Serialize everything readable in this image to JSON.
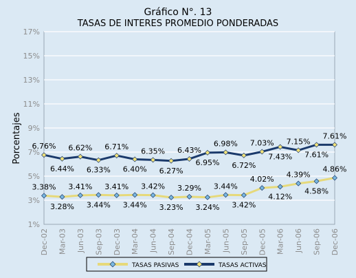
{
  "chart_data": {
    "type": "line",
    "title": "Gráfico N°. 13",
    "subtitle": "TASAS DE INTERES PROMEDIO PONDERADAS",
    "ylabel": "Porcentajes",
    "xlabel": "",
    "ylim": [
      1,
      17
    ],
    "yticks": [
      1,
      3,
      5,
      7,
      9,
      11,
      13,
      15,
      17
    ],
    "ytick_labels": [
      "1%",
      "3%",
      "5%",
      "7%",
      "9%",
      "11%",
      "13%",
      "15%",
      "17%"
    ],
    "categories": [
      "Dec-02",
      "Mar-03",
      "Jun-03",
      "Sep-03",
      "Dec-03",
      "Mar-04",
      "Jun-04",
      "Sep-04",
      "Dec-04",
      "Mar-05",
      "Jun-05",
      "Sep-05",
      "Dec-05",
      "Mar-06",
      "Jun-06",
      "Sep-06",
      "Dec-06"
    ],
    "grid": "horizontal",
    "legend_position": "bottom",
    "series": [
      {
        "name": "TASAS PASIVAS",
        "color": "#e6d97a",
        "marker_color": "#7ab8e0",
        "values": [
          3.38,
          3.28,
          3.41,
          3.44,
          3.41,
          3.44,
          3.42,
          3.23,
          3.29,
          3.24,
          3.44,
          3.42,
          4.02,
          4.12,
          4.39,
          4.58,
          4.86
        ],
        "labels": [
          "3.38%",
          "3.28%",
          "3.41%",
          "3.44%",
          "3.41%",
          "3.44%",
          "3.42%",
          "3.23%",
          "3.29%",
          "3.24%",
          "3.44%",
          "3.42%",
          "4.02%",
          "4.12%",
          "4.39%",
          "4.58%",
          "4.86%"
        ],
        "label_side": [
          "above",
          "below",
          "above",
          "below",
          "above",
          "below",
          "above",
          "below",
          "above",
          "below",
          "above",
          "below",
          "above",
          "below",
          "above",
          "below",
          "above"
        ]
      },
      {
        "name": "TASAS ACTIVAS",
        "color": "#1b3a6b",
        "marker_color": "#f2e27a",
        "values": [
          6.76,
          6.44,
          6.62,
          6.33,
          6.71,
          6.4,
          6.35,
          6.27,
          6.43,
          6.95,
          6.98,
          6.72,
          7.03,
          7.43,
          7.15,
          7.61,
          7.61
        ],
        "labels": [
          "6.76%",
          "6.44%",
          "6.62%",
          "6.33%",
          "6.71%",
          "6.40%",
          "6.35%",
          "6.27%",
          "6.43%",
          "6.95%",
          "6.98%",
          "6.72%",
          "7.03%",
          "7.43%",
          "7.15%",
          "7.61%",
          "7.61%"
        ],
        "label_side": [
          "above",
          "below",
          "above",
          "below",
          "above",
          "below",
          "above",
          "below",
          "above",
          "below",
          "above",
          "below",
          "above",
          "below",
          "above",
          "below",
          "above"
        ]
      }
    ]
  }
}
